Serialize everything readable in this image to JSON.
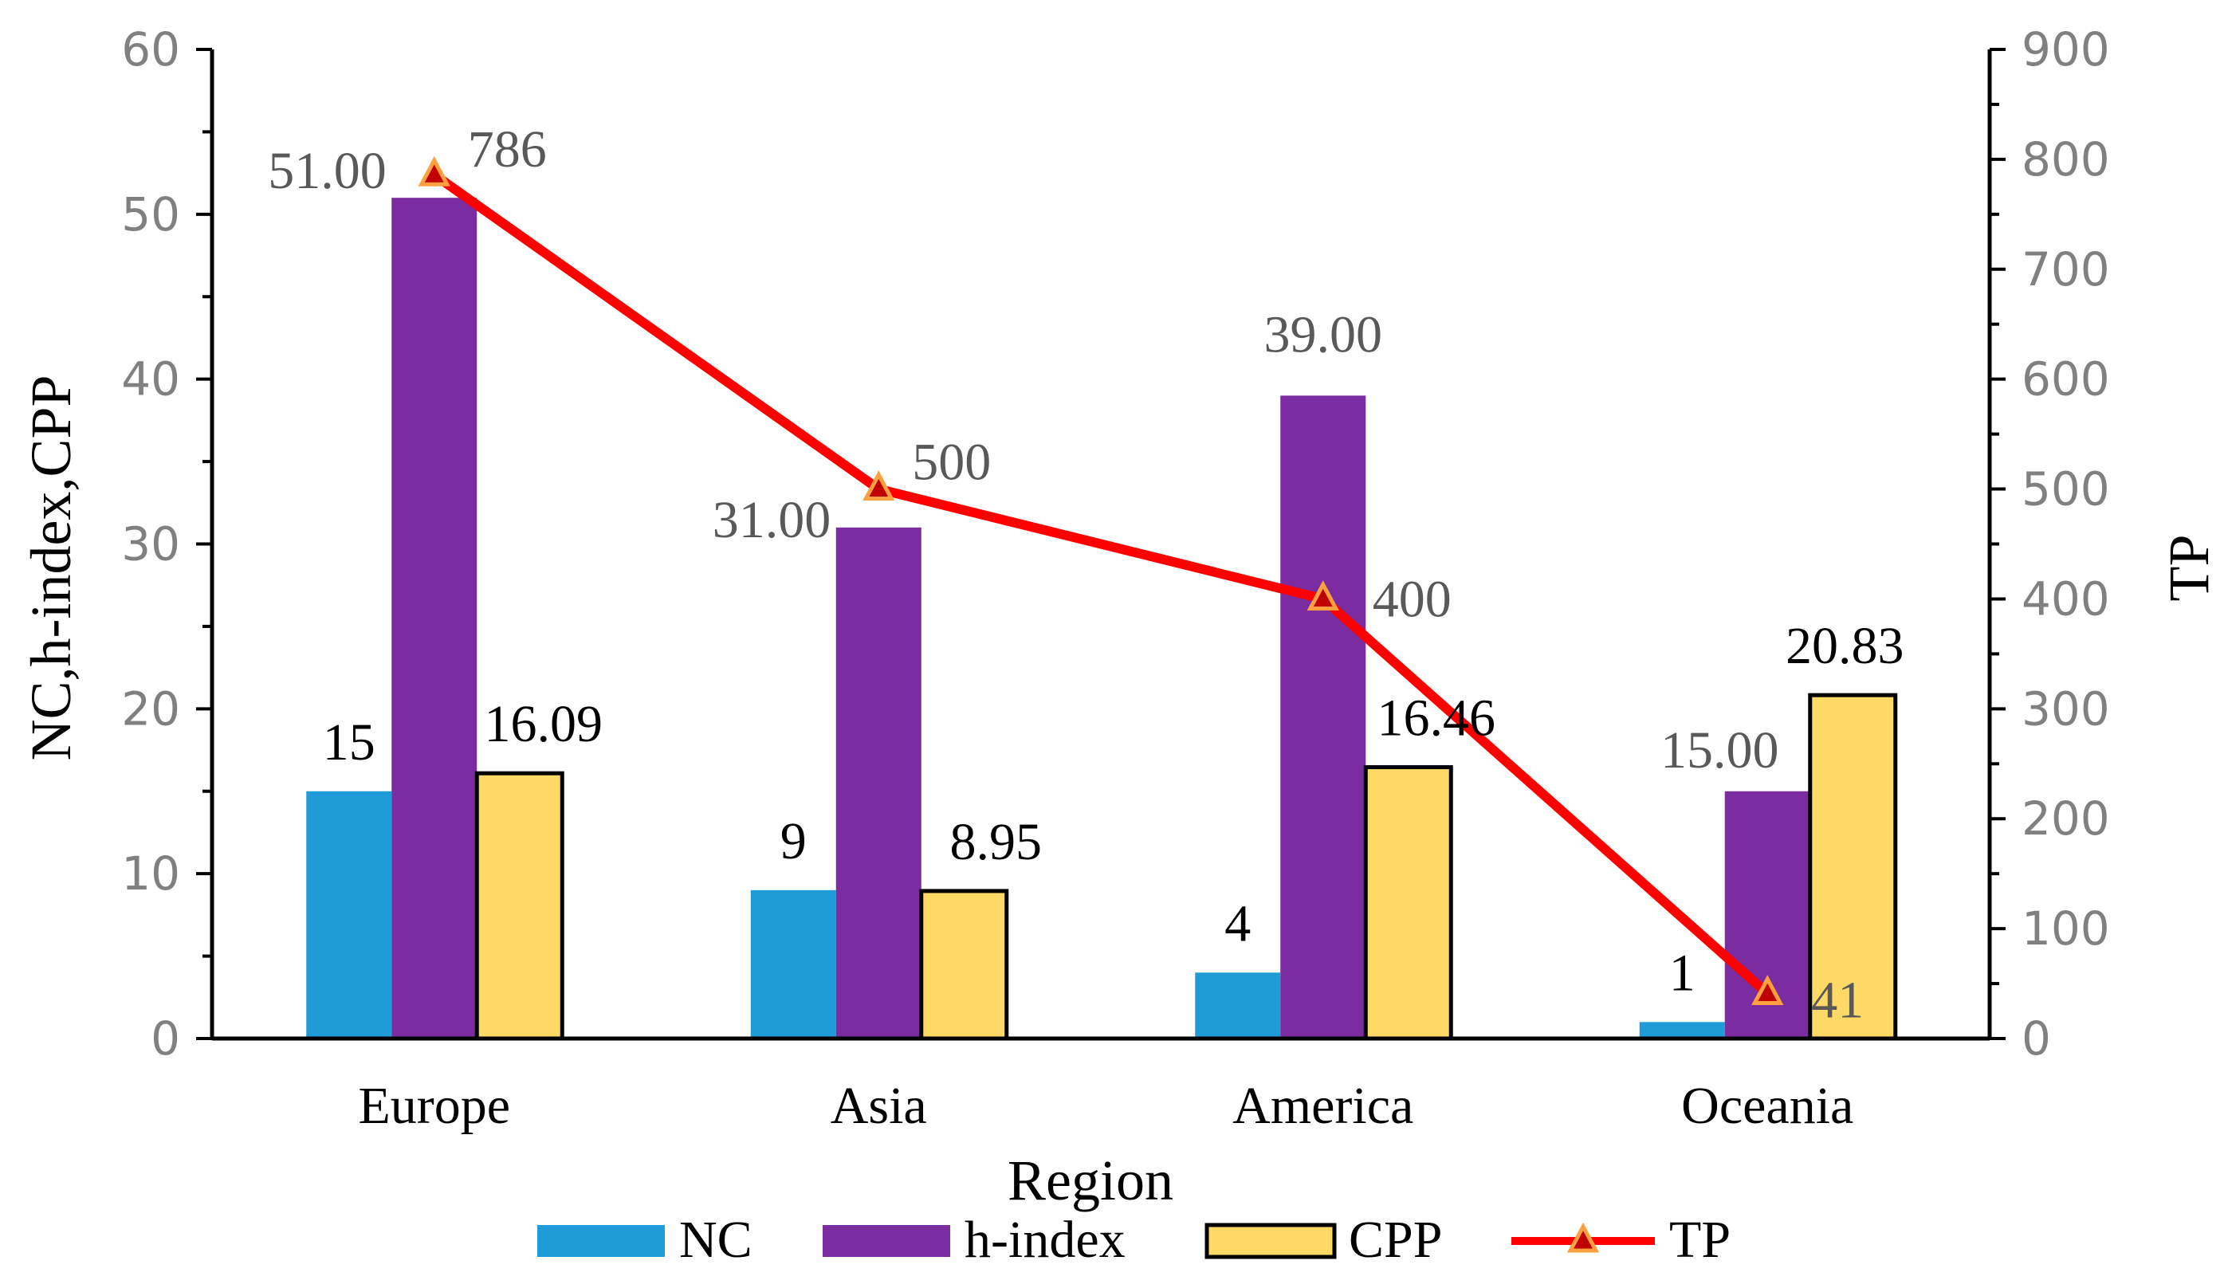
{
  "chart_data": {
    "type": "bar",
    "categories": [
      "Europe",
      "Asia",
      "America",
      "Oceania"
    ],
    "series": [
      {
        "name": "NC",
        "type": "bar",
        "axis": "left",
        "color": "#1F9BD8",
        "values": [
          15,
          9,
          4,
          1
        ],
        "labels": [
          "15",
          "9",
          "4",
          "1"
        ]
      },
      {
        "name": "h-index",
        "type": "bar",
        "axis": "left",
        "color": "#7B2CA0",
        "values": [
          51,
          31,
          39,
          15
        ],
        "labels": [
          "51.00",
          "31.00",
          "39.00",
          "15.00"
        ]
      },
      {
        "name": "CPP",
        "type": "bar",
        "axis": "left",
        "color": "#FFD966",
        "values": [
          16.09,
          8.95,
          16.46,
          20.83
        ],
        "labels": [
          "16.09",
          "8.95",
          "16.46",
          "20.83"
        ]
      },
      {
        "name": "TP",
        "type": "line",
        "axis": "right",
        "color": "#FF0000",
        "marker": "triangle",
        "values": [
          786,
          500,
          400,
          41
        ],
        "labels": [
          "786",
          "500",
          "400",
          "41"
        ]
      }
    ],
    "xlabel": "Region",
    "ylabel": "NC,h-index,CPP",
    "y2label": "TP",
    "ylim": [
      0,
      60
    ],
    "y2lim": [
      0,
      900
    ],
    "yticks": [
      "0",
      "10",
      "20",
      "30",
      "40",
      "50",
      "60"
    ],
    "y2ticks": [
      "0",
      "100",
      "200",
      "300",
      "400",
      "500",
      "600",
      "700",
      "800",
      "900"
    ],
    "grid": false,
    "legend_position": "bottom"
  }
}
